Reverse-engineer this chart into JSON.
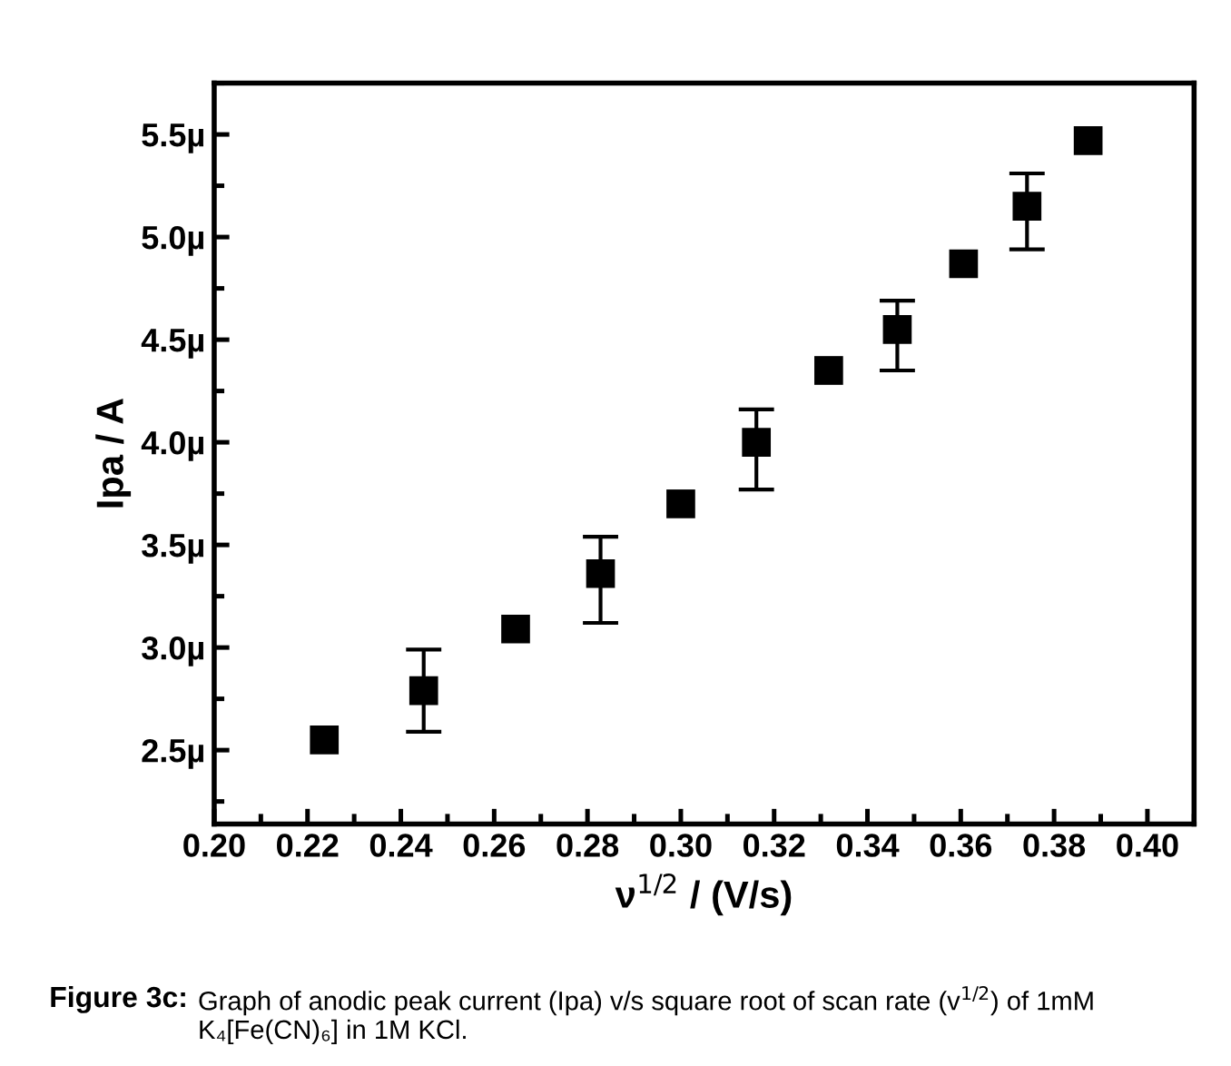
{
  "chart_data": {
    "type": "scatter",
    "xlabel": "ν$^{1/2}$ / (V/s)",
    "ylabel": "Ipa / A",
    "annotations": [
      "Figure 3c:",
      "Graph of anodic peak current (Ipa) v/s square root of scan rate (v$^{1/2}$) of 1mM K₄[Fe(CN)₆] in 1M KCl."
    ],
    "x": [
      0.2236,
      0.2449,
      0.2646,
      0.2828,
      0.3,
      0.3162,
      0.3317,
      0.3464,
      0.3606,
      0.3742,
      0.3873
    ],
    "values": [
      2.55,
      2.79,
      3.09,
      3.36,
      3.7,
      4.0,
      4.35,
      4.55,
      4.87,
      5.15,
      5.47
    ],
    "errors": [
      null,
      [
        2.59,
        2.99
      ],
      null,
      [
        3.12,
        3.54
      ],
      null,
      [
        3.77,
        4.16
      ],
      null,
      [
        4.35,
        4.69
      ],
      null,
      [
        4.94,
        5.31
      ],
      null
    ],
    "color": "#000000",
    "marker": "square",
    "xlim": [
      0.2,
      0.41
    ],
    "xticks": [
      {
        "value": 0.2,
        "label": "0.20"
      },
      0.22,
      0.24,
      0.26,
      0.28,
      {
        "value": 0.3,
        "label": "0.30"
      },
      0.32,
      0.34,
      0.36,
      0.38,
      {
        "value": 0.4,
        "label": "0.40"
      }
    ],
    "ylim": [
      2.14,
      5.75
    ],
    "yticks": [
      {
        "value": 2.5,
        "label": "2.5µ"
      },
      {
        "value": 3.0,
        "label": "3.0µ"
      },
      {
        "value": 3.5,
        "label": "3.5µ"
      },
      {
        "value": 4.0,
        "label": "4.0µ"
      },
      {
        "value": 4.5,
        "label": "4.5µ"
      },
      {
        "value": 5.0,
        "label": "5.0µ"
      },
      {
        "value": 5.5,
        "label": "5.5µ"
      }
    ],
    "grid": false,
    "legend": false
  }
}
